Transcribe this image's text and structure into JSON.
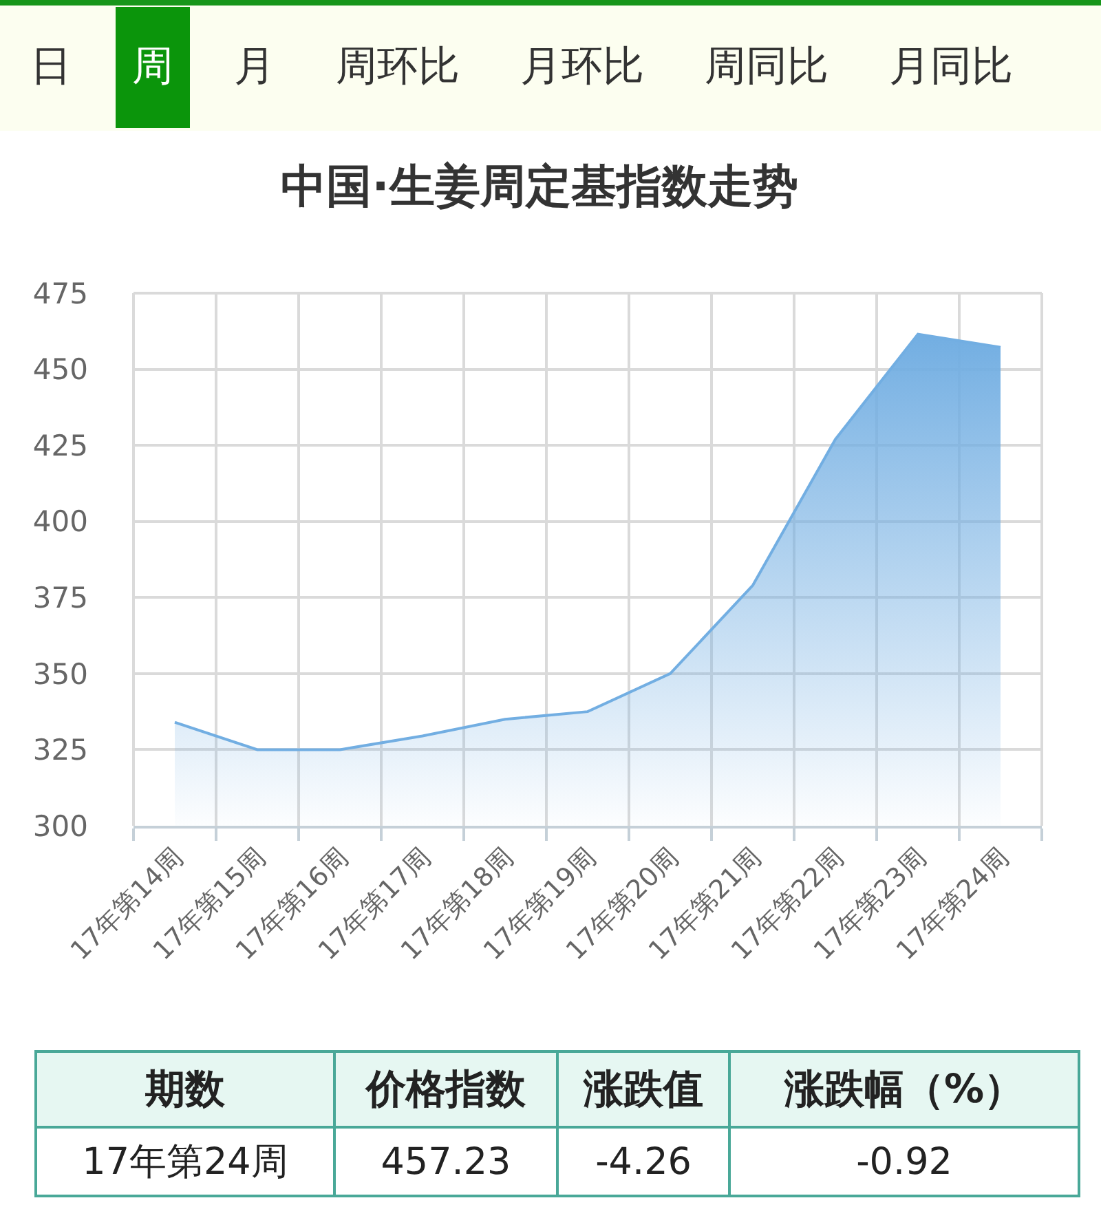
{
  "chart_data": [
    {
      "type": "other",
      "annotations": [
        "日",
        "周",
        "月",
        "周环比",
        "月环比",
        "周同比",
        "月同比"
      ]
    },
    {
      "type": "area",
      "title": "中国·生姜周定基指数走势",
      "categories": [
        "17年第14周",
        "17年第15周",
        "17年第16周",
        "17年第17周",
        "17年第18周",
        "17年第19周",
        "17年第20周",
        "17年第21周",
        "17年第22周",
        "17年第23周",
        "17年第24周"
      ],
      "values": [
        334,
        325,
        325,
        329.5,
        335,
        337.5,
        350,
        379,
        427,
        461.5,
        457.2
      ],
      "color": "#72aee2",
      "ylim": [
        300,
        475
      ],
      "yticks": [
        300,
        325,
        350,
        375,
        400,
        425,
        450,
        475
      ],
      "grid": true
    },
    {
      "type": "other",
      "annotations": [
        "期数",
        "价格指数",
        "涨跌值",
        "涨跌幅（%）",
        "17年第24周",
        "457.23",
        "-4.26",
        "-0.92"
      ]
    }
  ]
}
